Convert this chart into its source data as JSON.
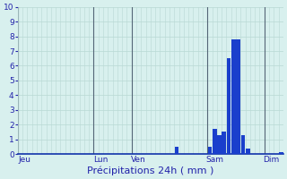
{
  "title": "",
  "xlabel": "Précipitations 24h ( mm )",
  "ylabel": "",
  "background_color": "#d8f0ee",
  "bar_color": "#1a3fcc",
  "grid_color_h": "#b8d8d4",
  "grid_color_v": "#9ab8b4",
  "vline_color": "#556677",
  "ylim": [
    0,
    10
  ],
  "yticks": [
    0,
    1,
    2,
    3,
    4,
    5,
    6,
    7,
    8,
    9,
    10
  ],
  "n_bars": 56,
  "values": [
    0,
    0,
    0,
    0,
    0,
    0,
    0,
    0,
    0,
    0,
    0,
    0,
    0,
    0,
    0,
    0,
    0,
    0,
    0,
    0,
    0,
    0,
    0,
    0,
    0,
    0,
    0,
    0,
    0,
    0,
    0,
    0,
    0,
    0.5,
    0,
    0,
    0,
    0,
    0,
    0,
    0.5,
    1.7,
    1.3,
    1.5,
    6.5,
    7.8,
    7.8,
    1.3,
    0.4,
    0,
    0,
    0,
    0,
    0,
    0,
    0.15
  ],
  "day_labels": [
    "Jeu",
    "Lun",
    "Ven",
    "Sam",
    "Dim"
  ],
  "day_x_positions": [
    1,
    17,
    25,
    41,
    53
  ],
  "day_vline_positions": [
    0,
    16,
    24,
    40,
    52
  ],
  "xlabel_fontsize": 8,
  "tick_fontsize": 6.5,
  "label_color": "#2222aa",
  "axis_color": "#1133aa"
}
